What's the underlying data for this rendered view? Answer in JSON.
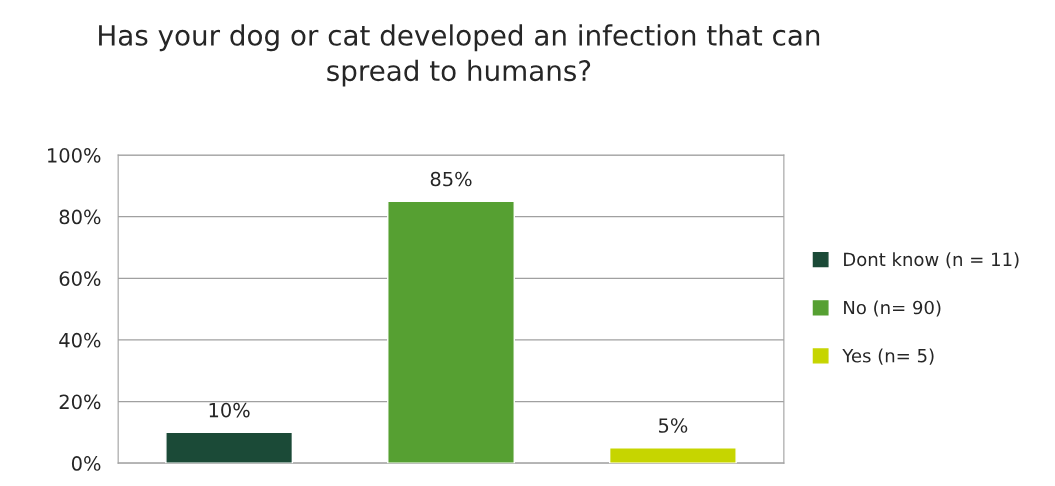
{
  "chart_data": {
    "type": "bar",
    "title": "Has your dog or cat developed an infection that can\nspread to humans?",
    "categories": [
      null,
      null,
      null
    ],
    "series": [
      {
        "name": "Dont know (n = 11)",
        "color": "#1b4a37",
        "values": [
          10,
          null,
          null
        ],
        "value_labels": [
          "10%",
          null,
          null
        ]
      },
      {
        "name": "No (n= 90)",
        "color": "#56a032",
        "values": [
          null,
          85,
          null
        ],
        "value_labels": [
          null,
          "85%",
          null
        ]
      },
      {
        "name": "Yes (n= 5)",
        "color": "#c6d500",
        "values": [
          null,
          null,
          5
        ],
        "value_labels": [
          null,
          null,
          "5%"
        ]
      }
    ],
    "ylim": [
      0,
      100
    ],
    "yticks": [
      {
        "value": 0,
        "label": "0%"
      },
      {
        "value": 20,
        "label": "20%"
      },
      {
        "value": 40,
        "label": "40%"
      },
      {
        "value": 60,
        "label": "60%"
      },
      {
        "value": 80,
        "label": "80%"
      },
      {
        "value": 100,
        "label": "100%"
      }
    ],
    "grid": "y",
    "legend": "right"
  }
}
